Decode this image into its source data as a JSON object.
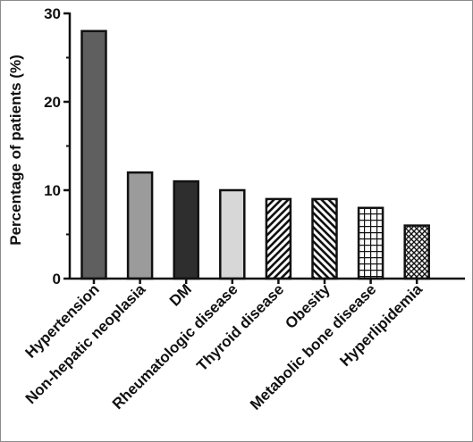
{
  "chart_data": {
    "type": "bar",
    "title": "",
    "xlabel": "",
    "ylabel": "Percentage of patients (%)",
    "ylim": [
      0,
      30
    ],
    "yticks": [
      0,
      10,
      20,
      30
    ],
    "grid": false,
    "legend": "none",
    "categories": [
      "Hypertension",
      "Non-hepatic neoplasia",
      "DM",
      "Rheumatologic disease",
      "Thyroid disease",
      "Obesity",
      "Metabolic bone disease",
      "Hyperlipidemia"
    ],
    "values": [
      28,
      12,
      11,
      10,
      9,
      9,
      8,
      6
    ],
    "bar_styles": [
      {
        "fill": "#5f5f5f",
        "pattern": "solid"
      },
      {
        "fill": "#9b9b9b",
        "pattern": "solid"
      },
      {
        "fill": "#2e2e2e",
        "pattern": "solid"
      },
      {
        "fill": "#d7d7d7",
        "pattern": "solid"
      },
      {
        "fill": "#ffffff",
        "pattern": "hatch-up"
      },
      {
        "fill": "#ffffff",
        "pattern": "hatch-down"
      },
      {
        "fill": "#ffffff",
        "pattern": "grid"
      },
      {
        "fill": "#ffffff",
        "pattern": "crosshatch"
      }
    ]
  }
}
